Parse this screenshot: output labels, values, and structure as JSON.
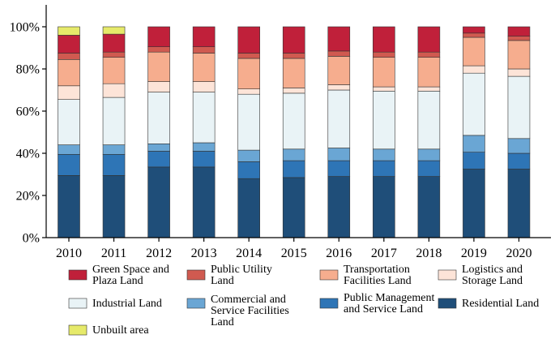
{
  "chart_data": {
    "type": "bar",
    "stacked": true,
    "normalized": true,
    "categories": [
      "2010",
      "2011",
      "2012",
      "2013",
      "2014",
      "2015",
      "2016",
      "2017",
      "2018",
      "2019",
      "2020"
    ],
    "ylim": [
      0,
      100
    ],
    "yticks": [
      0,
      20,
      40,
      60,
      80,
      100
    ],
    "ytick_labels": [
      "0%",
      "20%",
      "40%",
      "60%",
      "80%",
      "100%"
    ],
    "series": [
      {
        "name": "Residential Land",
        "color": "#1f4e79",
        "values": [
          29.5,
          29.5,
          33.5,
          33.5,
          28,
          28.5,
          29,
          29,
          29,
          32.5,
          32.5
        ]
      },
      {
        "name": "Public Management and Service Land",
        "color": "#2e75b6",
        "values": [
          10,
          10,
          7.5,
          7.5,
          8,
          8,
          7.5,
          7.5,
          7.5,
          8,
          7.5
        ]
      },
      {
        "name": "Commercial and Service Facilities Land",
        "color": "#6aa6d4",
        "values": [
          4.5,
          4.5,
          3.5,
          4,
          5.5,
          5.5,
          6,
          5.5,
          5.5,
          8,
          7
        ]
      },
      {
        "name": "Industrial Land",
        "color": "#e9f3f6",
        "values": [
          21.5,
          22.5,
          24.5,
          24,
          26.5,
          26.5,
          27.5,
          27.5,
          27.5,
          29.5,
          29.5
        ]
      },
      {
        "name": "Logistics and Storage Land",
        "color": "#fde4d8",
        "values": [
          6.5,
          6.5,
          5,
          5,
          2.5,
          2.5,
          2.5,
          2,
          2,
          3.5,
          3.5
        ]
      },
      {
        "name": "Transportation Facilities Land",
        "color": "#f6ad8e",
        "values": [
          12.5,
          12.5,
          14,
          13.5,
          14.5,
          14,
          13.5,
          14,
          14,
          13.5,
          13.5
        ]
      },
      {
        "name": "Public Utility Land",
        "color": "#d05a50",
        "values": [
          3,
          2.5,
          2.5,
          3,
          2.5,
          2.5,
          2.5,
          2.5,
          2.5,
          2,
          2
        ]
      },
      {
        "name": "Green Space and Plaza Land",
        "color": "#c0203a",
        "values": [
          8.5,
          8.5,
          9.5,
          9.5,
          12.5,
          12.5,
          11.5,
          12,
          12,
          3,
          4.5
        ]
      },
      {
        "name": "Unbuilt area",
        "color": "#e6ea6a",
        "values": [
          4,
          3.5,
          0,
          0,
          0,
          0,
          0,
          0,
          0,
          0,
          0
        ]
      }
    ],
    "legend": [
      {
        "lines": [
          "Green Space and",
          "Plaza Land"
        ],
        "color": "#c0203a"
      },
      {
        "lines": [
          "Public Utility",
          "Land"
        ],
        "color": "#d05a50"
      },
      {
        "lines": [
          "Transportation",
          "Facilities Land"
        ],
        "color": "#f6ad8e"
      },
      {
        "lines": [
          "Logistics and",
          "Storage Land"
        ],
        "color": "#fde4d8"
      },
      {
        "lines": [
          "Industrial Land"
        ],
        "color": "#e9f3f6"
      },
      {
        "lines": [
          "Commercial and",
          "Service Facilities",
          "Land"
        ],
        "color": "#6aa6d4"
      },
      {
        "lines": [
          "Public Management",
          "and Service Land"
        ],
        "color": "#2e75b6"
      },
      {
        "lines": [
          "Residential Land"
        ],
        "color": "#1f4e79"
      },
      {
        "lines": [
          "Unbuilt area"
        ],
        "color": "#e6ea6a"
      }
    ]
  }
}
